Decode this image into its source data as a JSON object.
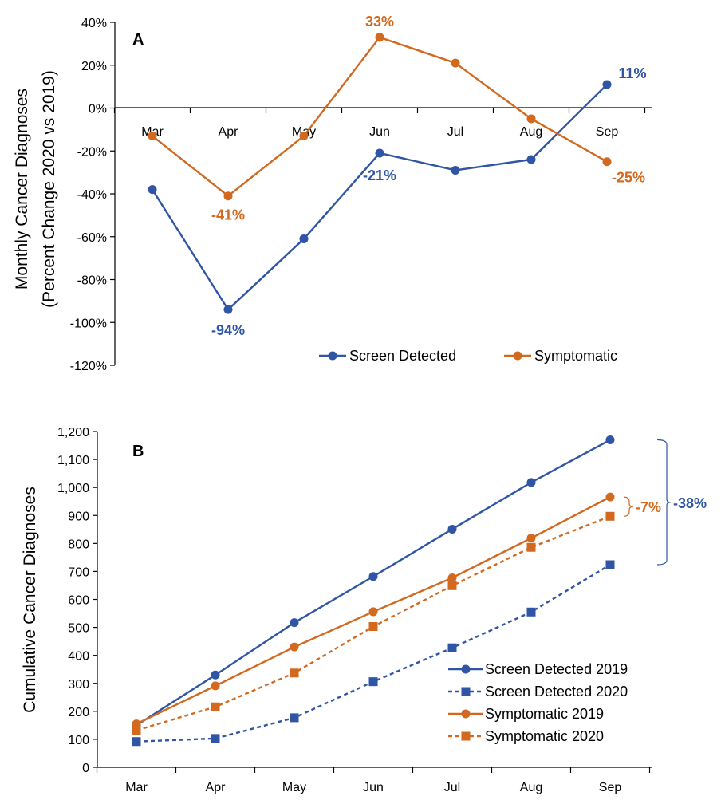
{
  "chart_data": [
    {
      "type": "line",
      "panel_label": "A",
      "ylabel": "Monthly Cancer Diagnoses\n(Percent Change 2020 vs 2019)",
      "xlabel": "",
      "categories": [
        "Mar",
        "Apr",
        "May",
        "Jun",
        "Jul",
        "Aug",
        "Sep"
      ],
      "ylim": [
        -120,
        40
      ],
      "yticks": [
        40,
        20,
        0,
        -20,
        -40,
        -60,
        -80,
        -100,
        -120
      ],
      "ytick_labels": [
        "40%",
        "20%",
        "0%",
        "-20%",
        "-40%",
        "-60%",
        "-80%",
        "-100%",
        "-120%"
      ],
      "grid": false,
      "legend_position": "bottom-right",
      "series": [
        {
          "name": "Screen Detected",
          "color": "#2F55A4",
          "marker": "circle",
          "dash": false,
          "values": [
            -38,
            -94,
            -61,
            -21,
            -29,
            -24,
            11
          ]
        },
        {
          "name": "Symptomatic",
          "color": "#D2691E",
          "marker": "circle",
          "dash": false,
          "values": [
            -13,
            -41,
            -13,
            33,
            21,
            -5,
            -25
          ]
        }
      ],
      "data_labels": [
        {
          "series": 0,
          "index": 1,
          "text": "-94%"
        },
        {
          "series": 0,
          "index": 3,
          "text": "-21%"
        },
        {
          "series": 0,
          "index": 6,
          "text": "11%"
        },
        {
          "series": 1,
          "index": 1,
          "text": "-41%"
        },
        {
          "series": 1,
          "index": 3,
          "text": "33%"
        },
        {
          "series": 1,
          "index": 6,
          "text": "-25%"
        }
      ]
    },
    {
      "type": "line",
      "panel_label": "B",
      "ylabel": "Cumulative Cancer Diagnoses",
      "xlabel": "",
      "categories": [
        "Mar",
        "Apr",
        "May",
        "Jun",
        "Jul",
        "Aug",
        "Sep"
      ],
      "ylim": [
        0,
        1200
      ],
      "yticks": [
        0,
        100,
        200,
        300,
        400,
        500,
        600,
        700,
        800,
        900,
        1000,
        1100,
        1200
      ],
      "ytick_labels": [
        "0",
        "100",
        "200",
        "300",
        "400",
        "500",
        "600",
        "700",
        "800",
        "900",
        "1,000",
        "1,100",
        "1,200"
      ],
      "grid": false,
      "legend_position": "bottom-right",
      "series": [
        {
          "name": "Screen Detected 2019",
          "color": "#2F55A4",
          "marker": "circle",
          "dash": false,
          "values": [
            150,
            330,
            517,
            682,
            851,
            1018,
            1170
          ]
        },
        {
          "name": "Screen Detected 2020",
          "color": "#2F55A4",
          "marker": "square",
          "dash": true,
          "values": [
            92,
            103,
            177,
            306,
            427,
            555,
            724
          ]
        },
        {
          "name": "Symptomatic 2019",
          "color": "#D2691E",
          "marker": "circle",
          "dash": false,
          "values": [
            155,
            291,
            430,
            556,
            677,
            819,
            966
          ]
        },
        {
          "name": "Symptomatic 2020",
          "color": "#D2691E",
          "marker": "square",
          "dash": true,
          "values": [
            132,
            216,
            337,
            503,
            649,
            786,
            897
          ]
        }
      ],
      "annotations": [
        {
          "text": "-7%",
          "color": "#D2691E",
          "from": 966,
          "to": 897
        },
        {
          "text": "-38%",
          "color": "#2F55A4",
          "from": 1170,
          "to": 724
        }
      ]
    }
  ]
}
